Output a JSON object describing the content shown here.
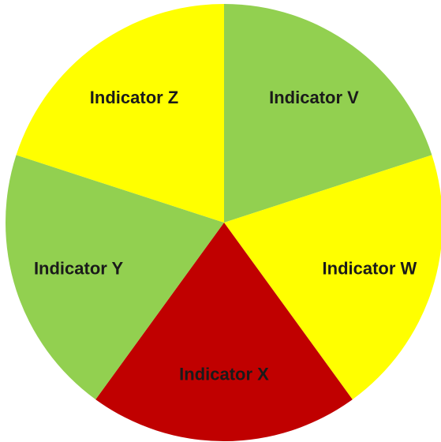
{
  "chart_data": {
    "type": "pie",
    "categories": [
      "Indicator V",
      "Indicator W",
      "Indicator X",
      "Indicator Y",
      "Indicator Z"
    ],
    "values": [
      20,
      20,
      20,
      20,
      20
    ],
    "colors": [
      "#92d050",
      "#ffff00",
      "#c00000",
      "#92d050",
      "#ffff00"
    ]
  }
}
